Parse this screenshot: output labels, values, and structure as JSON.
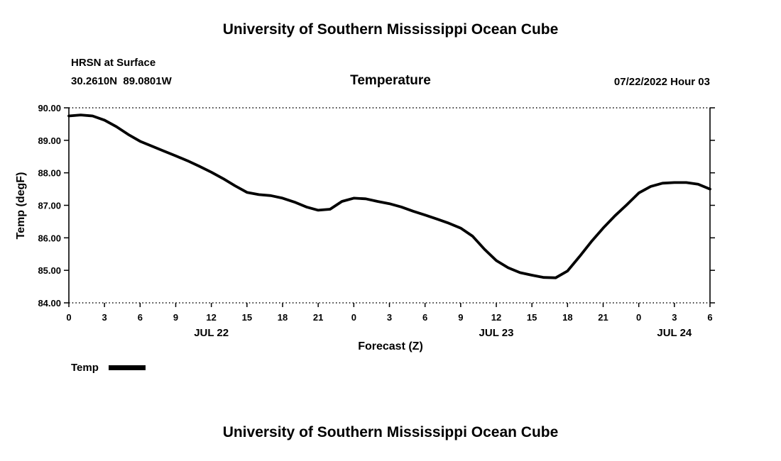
{
  "header": {
    "main_title": "University of Southern Mississippi Ocean Cube",
    "station": "HRSN at Surface",
    "coords": "30.2610N  89.0801W",
    "plot_title": "Temperature",
    "run_label": "07/22/2022 Hour 03"
  },
  "legend": {
    "temp_label": "Temp"
  },
  "footer": {
    "next_page_title": "University of Southern Mississippi Ocean Cube"
  },
  "chart_data": {
    "type": "line",
    "title": "Temperature",
    "xlabel": "Forecast (Z)",
    "ylabel": "Temp (degF)",
    "ylim": [
      84.0,
      90.0
    ],
    "x_range": [
      0,
      54
    ],
    "grid": "dotted lines at top (90.00) and bottom (84.00) borders only",
    "legend_position": "bottom-left",
    "line_color": "#000000",
    "yticks": [
      {
        "value": 90.0,
        "label": "90.00"
      },
      {
        "value": 89.0,
        "label": "89.00"
      },
      {
        "value": 88.0,
        "label": "88.00"
      },
      {
        "value": 87.0,
        "label": "87.00"
      },
      {
        "value": 86.0,
        "label": "86.00"
      },
      {
        "value": 85.0,
        "label": "85.00"
      },
      {
        "value": 84.0,
        "label": "84.00"
      }
    ],
    "xticks": [
      {
        "hour": 0,
        "label": "0"
      },
      {
        "hour": 3,
        "label": "3"
      },
      {
        "hour": 6,
        "label": "6"
      },
      {
        "hour": 9,
        "label": "9"
      },
      {
        "hour": 12,
        "label": "12"
      },
      {
        "hour": 15,
        "label": "15"
      },
      {
        "hour": 18,
        "label": "18"
      },
      {
        "hour": 21,
        "label": "21"
      },
      {
        "hour": 24,
        "label": "0"
      },
      {
        "hour": 27,
        "label": "3"
      },
      {
        "hour": 30,
        "label": "6"
      },
      {
        "hour": 33,
        "label": "9"
      },
      {
        "hour": 36,
        "label": "12"
      },
      {
        "hour": 39,
        "label": "15"
      },
      {
        "hour": 42,
        "label": "18"
      },
      {
        "hour": 45,
        "label": "21"
      },
      {
        "hour": 48,
        "label": "0"
      },
      {
        "hour": 51,
        "label": "3"
      },
      {
        "hour": 54,
        "label": "6"
      }
    ],
    "day_labels": [
      {
        "hour": 12,
        "label": "JUL 22"
      },
      {
        "hour": 36,
        "label": "JUL 23"
      },
      {
        "hour": 51,
        "label": "JUL 24"
      }
    ],
    "series": [
      {
        "name": "Temp",
        "x": [
          0,
          1,
          2,
          3,
          4,
          5,
          6,
          7,
          8,
          9,
          10,
          11,
          12,
          13,
          14,
          15,
          16,
          17,
          18,
          19,
          20,
          21,
          22,
          23,
          24,
          25,
          26,
          27,
          28,
          29,
          30,
          31,
          32,
          33,
          34,
          35,
          36,
          37,
          38,
          39,
          40,
          41,
          42,
          43,
          44,
          45,
          46,
          47,
          48,
          49,
          50,
          51,
          52,
          53,
          54
        ],
        "values": [
          89.75,
          89.78,
          89.75,
          89.62,
          89.42,
          89.18,
          88.97,
          88.82,
          88.67,
          88.52,
          88.37,
          88.2,
          88.02,
          87.82,
          87.6,
          87.4,
          87.33,
          87.3,
          87.22,
          87.1,
          86.95,
          86.85,
          86.88,
          87.12,
          87.22,
          87.2,
          87.12,
          87.05,
          86.95,
          86.82,
          86.7,
          86.58,
          86.45,
          86.3,
          86.05,
          85.65,
          85.3,
          85.08,
          84.93,
          84.85,
          84.78,
          84.77,
          84.98,
          85.42,
          85.88,
          86.3,
          86.68,
          87.02,
          87.38,
          87.58,
          87.68,
          87.7,
          87.7,
          87.65,
          87.5
        ]
      }
    ]
  }
}
